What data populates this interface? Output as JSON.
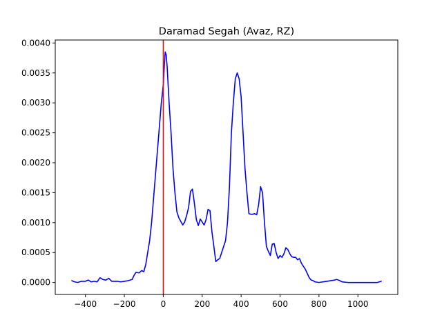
{
  "chart_data": {
    "type": "line",
    "title": "Daramad Segah (Avaz, RZ)",
    "xlabel": "",
    "ylabel": "",
    "xlim": [
      -555,
      1205
    ],
    "ylim": [
      -0.0002,
      0.00405
    ],
    "x_ticks": [
      -400,
      -200,
      0,
      200,
      400,
      600,
      800,
      1000
    ],
    "x_tick_labels": [
      "−400",
      "−200",
      "0",
      "200",
      "400",
      "600",
      "800",
      "1000"
    ],
    "y_ticks": [
      0.0,
      0.0005,
      0.001,
      0.0015,
      0.002,
      0.0025,
      0.003,
      0.0035,
      0.004
    ],
    "y_tick_labels": [
      "0.0000",
      "0.0005",
      "0.0010",
      "0.0015",
      "0.0020",
      "0.0025",
      "0.0030",
      "0.0035",
      "0.0040"
    ],
    "grid": false,
    "series": [
      {
        "color": "#0000ff",
        "x": [
          -470,
          -455,
          -440,
          -420,
          -400,
          -385,
          -370,
          -355,
          -340,
          -325,
          -310,
          -295,
          -280,
          -265,
          -250,
          -235,
          -220,
          -200,
          -180,
          -160,
          -150,
          -140,
          -125,
          -110,
          -100,
          -90,
          -80,
          -70,
          -60,
          -50,
          -40,
          -30,
          -20,
          -10,
          0,
          5,
          10,
          15,
          20,
          30,
          40,
          50,
          60,
          70,
          80,
          90,
          100,
          110,
          120,
          130,
          140,
          150,
          160,
          170,
          180,
          190,
          200,
          210,
          220,
          230,
          240,
          250,
          260,
          270,
          280,
          290,
          300,
          310,
          320,
          330,
          340,
          350,
          360,
          370,
          380,
          390,
          400,
          410,
          420,
          430,
          440,
          450,
          460,
          470,
          480,
          490,
          500,
          510,
          520,
          530,
          540,
          550,
          560,
          570,
          580,
          590,
          600,
          610,
          620,
          630,
          640,
          650,
          660,
          670,
          680,
          690,
          700,
          710,
          720,
          730,
          740,
          750,
          760,
          770,
          780,
          800,
          820,
          840,
          860,
          880,
          890,
          900,
          920,
          950,
          1000,
          1050,
          1100,
          1120
        ],
        "y": [
          3e-05,
          1e-05,
          0.0,
          2e-05,
          2e-05,
          4e-05,
          1e-05,
          2e-05,
          1e-05,
          8e-05,
          5e-05,
          4e-05,
          7e-05,
          2e-05,
          2e-05,
          2e-05,
          1e-05,
          2e-05,
          3e-05,
          5e-05,
          0.00012,
          0.00017,
          0.00016,
          0.0002,
          0.00018,
          0.0003,
          0.0005,
          0.0007,
          0.001,
          0.0014,
          0.0018,
          0.0022,
          0.0026,
          0.003,
          0.0033,
          0.0036,
          0.00385,
          0.0038,
          0.0036,
          0.003,
          0.0025,
          0.0019,
          0.0015,
          0.00118,
          0.00108,
          0.00102,
          0.00096,
          0.00101,
          0.00112,
          0.00125,
          0.00152,
          0.00156,
          0.00132,
          0.00105,
          0.00095,
          0.00106,
          0.00101,
          0.00096,
          0.00105,
          0.00122,
          0.0012,
          0.00085,
          0.0006,
          0.00035,
          0.00038,
          0.0004,
          0.0005,
          0.0006,
          0.0007,
          0.001,
          0.0016,
          0.0025,
          0.003,
          0.0034,
          0.0035,
          0.0034,
          0.0031,
          0.0025,
          0.0019,
          0.0015,
          0.00115,
          0.00114,
          0.00114,
          0.00115,
          0.00113,
          0.0013,
          0.0016,
          0.0015,
          0.001,
          0.0006,
          0.00052,
          0.00045,
          0.00064,
          0.00065,
          0.0005,
          0.0004,
          0.00045,
          0.00042,
          0.00048,
          0.00058,
          0.00055,
          0.00048,
          0.00043,
          0.00042,
          0.00042,
          0.00038,
          0.0004,
          0.00032,
          0.00027,
          0.00022,
          0.00015,
          8e-05,
          4e-05,
          3e-05,
          1e-05,
          0.0,
          1e-05,
          2e-05,
          3e-05,
          4e-05,
          5e-05,
          4e-05,
          1e-05,
          0.0,
          0.0,
          0.0,
          0.0,
          2e-05
        ]
      }
    ],
    "vertical_line": {
      "x": 0,
      "color": "#ff0000"
    }
  }
}
